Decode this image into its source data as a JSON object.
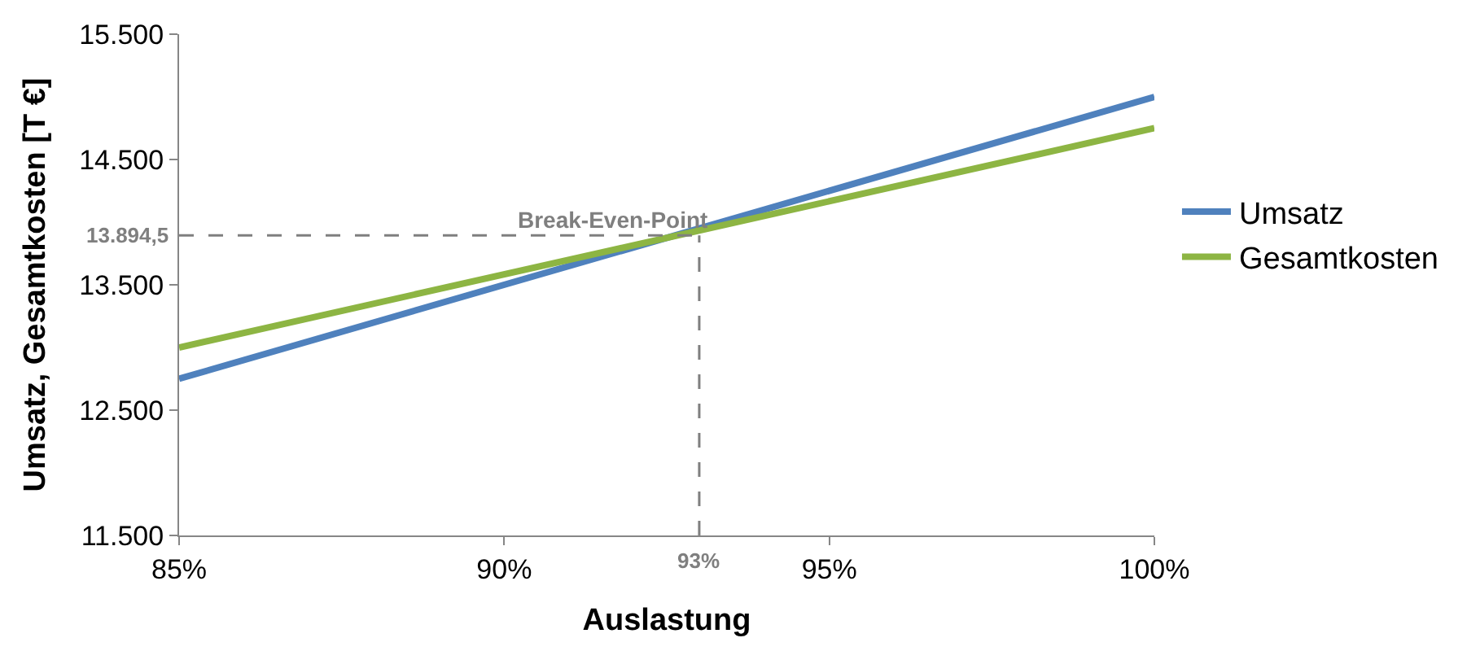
{
  "chart_data": {
    "type": "line",
    "xlabel": "Auslastung",
    "ylabel": "Umsatz, Gesamtkosten [T €]",
    "x": [
      85,
      100
    ],
    "series": [
      {
        "name": "Umsatz",
        "color": "#4f81bd",
        "values": [
          12750,
          15000
        ]
      },
      {
        "name": "Gesamtkosten",
        "color": "#8db543",
        "values": [
          13000,
          14750
        ]
      }
    ],
    "xlim": [
      85,
      100
    ],
    "ylim": [
      11500,
      15500
    ],
    "xticks": [
      {
        "value": 85,
        "label": "85%"
      },
      {
        "value": 90,
        "label": "90%"
      },
      {
        "value": 95,
        "label": "95%"
      },
      {
        "value": 100,
        "label": "100%"
      }
    ],
    "yticks": [
      {
        "value": 11500,
        "label": "11.500"
      },
      {
        "value": 12500,
        "label": "12.500"
      },
      {
        "value": 13500,
        "label": "13.500"
      },
      {
        "value": 14500,
        "label": "14.500"
      },
      {
        "value": 15500,
        "label": "15.500"
      }
    ],
    "ref_lines": [
      {
        "axis": "x",
        "value": 93,
        "label": "93%",
        "color": "#7f7f7f",
        "line_style": "dashed"
      },
      {
        "axis": "y",
        "value": 13894.5,
        "label": "13.894,5",
        "color": "#7f7f7f",
        "line_style": "dashed"
      }
    ],
    "annotations": [
      {
        "text": "Break-Even-Point",
        "x": 93,
        "y": 13894.5
      }
    ],
    "legend": "right",
    "marker": "none",
    "line_style": "solid"
  }
}
